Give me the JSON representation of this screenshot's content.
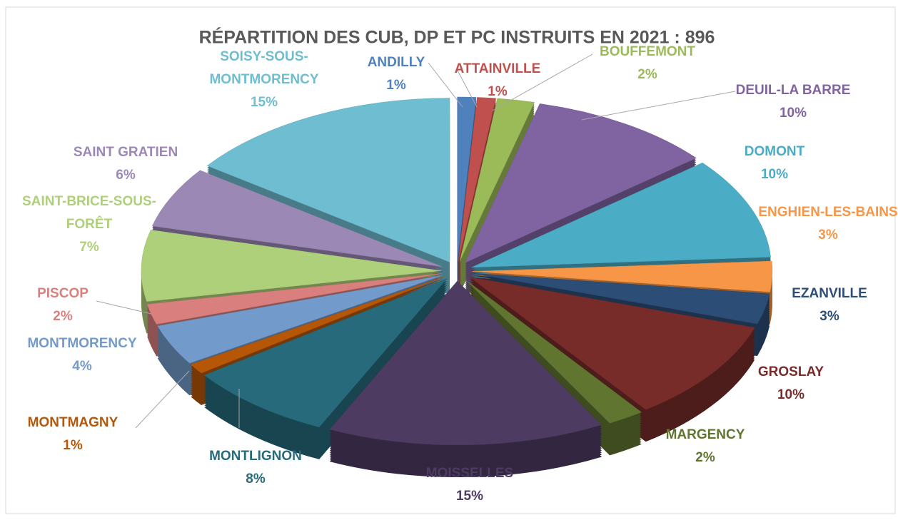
{
  "chart_data": {
    "type": "pie",
    "title": "RÉPARTITION DES CUB, DP ET PC INSTRUITS EN 2021 : 896",
    "categories": [
      "ANDILLY",
      "ATTAINVILLE",
      "BOUFFEMONT",
      "DEUIL-LA BARRE",
      "DOMONT",
      "ENGHIEN-LES-BAINS",
      "EZANVILLE",
      "GROSLAY",
      "MARGENCY",
      "MOISSELLES",
      "MONTLIGNON",
      "MONTMAGNY",
      "MONTMORENCY",
      "PISCOP",
      "SAINT-BRICE-SOUS-FORÊT",
      "SAINT GRATIEN",
      "SOISY-SOUS-MONTMORENCY"
    ],
    "values": [
      1,
      1,
      2,
      10,
      10,
      3,
      3,
      10,
      2,
      15,
      8,
      1,
      4,
      2,
      7,
      6,
      15
    ],
    "value_labels": [
      "1%",
      "1%",
      "2%",
      "10%",
      "10%",
      "3%",
      "3%",
      "10%",
      "2%",
      "15%",
      "8%",
      "1%",
      "4%",
      "2%",
      "7%",
      "6%",
      "15%"
    ],
    "colors": [
      "#4f81bd",
      "#c0504d",
      "#9bbb59",
      "#8064a2",
      "#4bacc6",
      "#f79646",
      "#2c4d75",
      "#772c2a",
      "#5f7530",
      "#4d3b62",
      "#276a7c",
      "#b65708",
      "#729aca",
      "#d9807e",
      "#afd07a",
      "#9b88b5",
      "#6fbdd1"
    ]
  }
}
